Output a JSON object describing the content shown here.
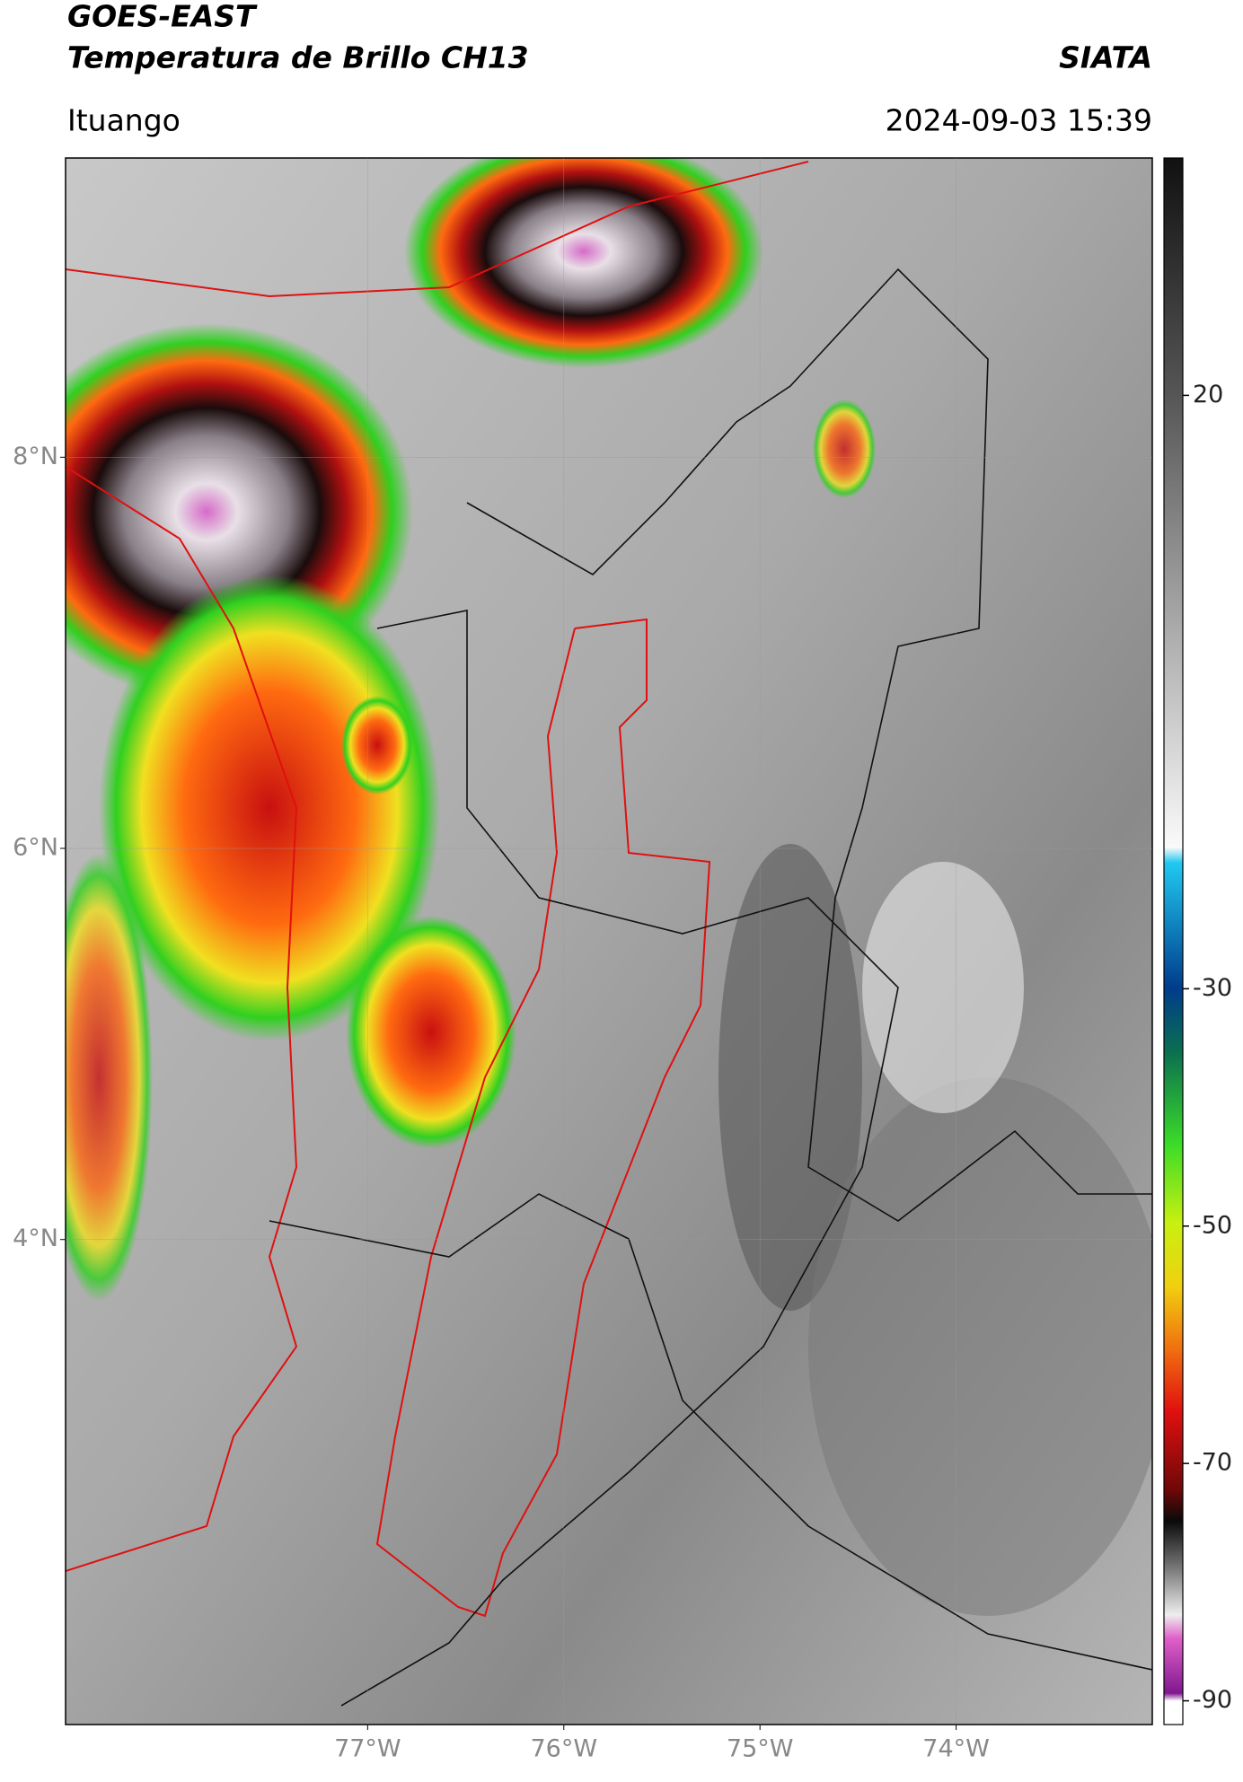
{
  "header": {
    "title": "GOES-EAST",
    "subtitle": "Temperatura de Brillo CH13",
    "source": "SIATA",
    "location": "Ituango",
    "datetime": "2024-09-03 15:39"
  },
  "map": {
    "xlim": [
      -78.54,
      -73.0
    ],
    "ylim": [
      1.52,
      9.53
    ],
    "xticks": [
      {
        "value": -77,
        "label": "77°W"
      },
      {
        "value": -76,
        "label": "76°W"
      },
      {
        "value": -75,
        "label": "75°W"
      },
      {
        "value": -74,
        "label": "74°W"
      }
    ],
    "yticks": [
      {
        "value": 8,
        "label": "8°N"
      },
      {
        "value": 6,
        "label": "6°N"
      },
      {
        "value": 4,
        "label": "4°N"
      }
    ]
  },
  "colorbar": {
    "lim": [
      -92,
      40
    ],
    "ticks": [
      20,
      -30,
      -50,
      -70,
      -90
    ]
  }
}
